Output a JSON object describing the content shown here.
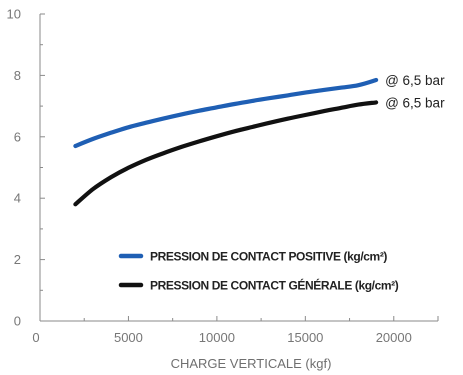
{
  "chart_data": {
    "type": "line",
    "xlabel": "CHARGE VERTICALE (kgf)",
    "ylabel": "",
    "xlim": [
      0,
      22500
    ],
    "ylim": [
      0,
      10
    ],
    "x_ticks": [
      0,
      5000,
      10000,
      15000,
      20000
    ],
    "x_tick_labels": [
      "0",
      "5000",
      "10000",
      "15000",
      "20000"
    ],
    "y_ticks": [
      0,
      2,
      4,
      6,
      8,
      10
    ],
    "y_tick_labels": [
      "0",
      "2",
      "4",
      "6",
      "8",
      "10"
    ],
    "grid": false,
    "legend_position": "bottom-right",
    "series": [
      {
        "name": "PRESSION DE CONTACT POSITIVE (kg/cm²)",
        "color": "#1f5fb4",
        "end_label": "@ 6,5 bar",
        "x": [
          2000,
          3000,
          4000,
          5000,
          6000,
          7000,
          8000,
          9000,
          10000,
          11000,
          12000,
          13000,
          14000,
          15000,
          16000,
          17000,
          18000,
          19000
        ],
        "y": [
          5.7,
          5.93,
          6.13,
          6.31,
          6.46,
          6.6,
          6.73,
          6.85,
          6.96,
          7.07,
          7.17,
          7.26,
          7.35,
          7.44,
          7.52,
          7.6,
          7.68,
          7.85
        ]
      },
      {
        "name": "PRESSION DE CONTACT GÉNÉRALE (kg/cm²)",
        "color": "#111111",
        "end_label": "@ 6,5 bar",
        "x": [
          2000,
          3000,
          4000,
          5000,
          6000,
          7000,
          8000,
          9000,
          10000,
          11000,
          12000,
          13000,
          14000,
          15000,
          16000,
          17000,
          18000,
          19000
        ],
        "y": [
          3.8,
          4.3,
          4.68,
          4.99,
          5.25,
          5.47,
          5.67,
          5.85,
          6.02,
          6.18,
          6.32,
          6.46,
          6.59,
          6.71,
          6.83,
          6.94,
          7.05,
          7.12
        ]
      }
    ]
  }
}
